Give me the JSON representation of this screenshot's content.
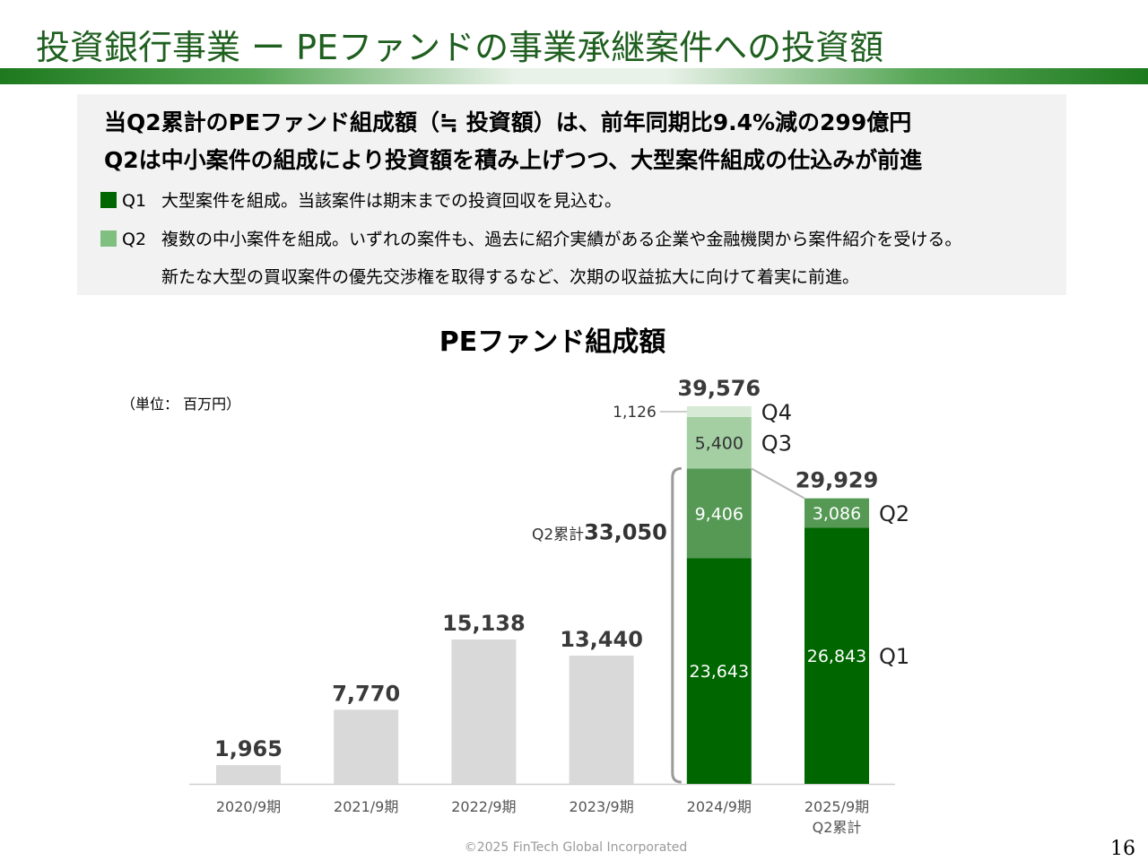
{
  "slide": {
    "title": "投資銀行事業 ー PEファンドの事業承継案件への投資額",
    "page_number": "16",
    "copyright": "©2025 FinTech Global Incorporated"
  },
  "summary": {
    "headline1": "当Q2累計のPEファンド組成額（≒ 投資額）は、前年同期比9.4%減の299億円",
    "headline2": "Q2は中小案件の組成により投資額を積み上げつつ、大型案件組成の仕込みが前進",
    "notes": [
      {
        "tag": "Q1",
        "color": "#006600",
        "text": "大型案件を組成。当該案件は期末までの投資回収を見込む。"
      },
      {
        "tag": "Q2",
        "color": "#7fbf7f",
        "text": "複数の中小案件を組成。いずれの案件も、過去に紹介実績がある企業や金融機関から案件紹介を受ける。"
      }
    ],
    "note_continuation": "新たな大型の買収案件の優先交渉権を取得するなど、次期の収益拡大に向けて着実に前進。"
  },
  "chart_data": {
    "type": "bar",
    "title": "PEファンド組成額",
    "unit_label": "（単位： 百万円）",
    "categories": [
      "2020/9期",
      "2021/9期",
      "2022/9期",
      "2023/9期"
    ],
    "values": [
      1965,
      7770,
      15138,
      13440
    ],
    "value_labels": [
      "1,965",
      "7,770",
      "15,138",
      "13,440"
    ],
    "stacked_bars": [
      {
        "category_line1": "2024/9期",
        "category_line2": "",
        "total_label": "39,576",
        "segments": [
          {
            "name": "Q1",
            "value": 23643,
            "label": "23,643",
            "color": "#006600"
          },
          {
            "name": "Q2",
            "value": 9406,
            "label": "9,406",
            "color": "#559955"
          },
          {
            "name": "Q3",
            "value": 5400,
            "label": "5,400",
            "color": "#a3cfa3"
          },
          {
            "name": "Q4",
            "value": 1126,
            "label": "1,126",
            "color": "#d6ead6"
          }
        ]
      },
      {
        "category_line1": "2025/9期",
        "category_line2": "Q2累計",
        "total_label": "29,929",
        "segments": [
          {
            "name": "Q1",
            "value": 26843,
            "label": "26,843",
            "color": "#006600"
          },
          {
            "name": "Q2",
            "value": 3086,
            "label": "3,086",
            "color": "#559955"
          }
        ]
      }
    ],
    "bracket": {
      "prefix": "Q2累計",
      "value_label": "33,050"
    },
    "ylim": [
      0,
      40000
    ],
    "grid": false,
    "legend": "none"
  },
  "colors": {
    "title": "#1f5f1f",
    "gray_bar": "#d9d9d9",
    "q1": "#006600",
    "q2": "#559955",
    "q3": "#a3cfa3",
    "q4": "#d6ead6"
  }
}
